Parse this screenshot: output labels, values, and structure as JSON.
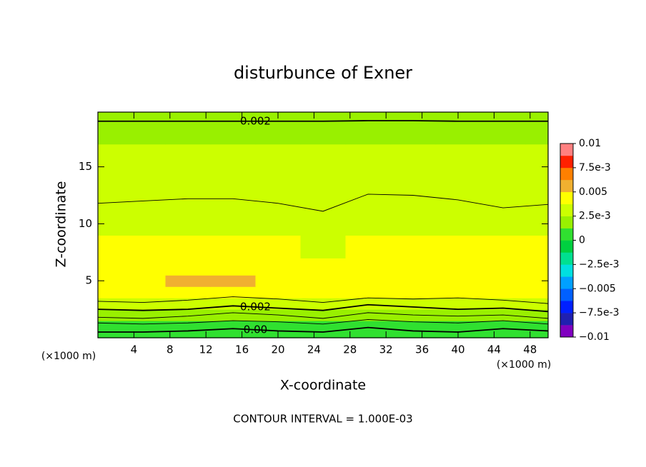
{
  "chart_data": {
    "type": "contour",
    "title": "disturbunce of Exner",
    "x_label": "X-coordinate",
    "y_label": "Z-coordinate",
    "x_unit": "(×1000 m)",
    "y_unit": "(×1000 m)",
    "footer": "CONTOUR INTERVAL = 1.000E-03",
    "xlim": [
      0,
      50
    ],
    "ylim": [
      0,
      19.8
    ],
    "xticks": [
      4,
      8,
      12,
      16,
      20,
      24,
      28,
      32,
      36,
      40,
      44,
      48
    ],
    "yticks": [
      5,
      10,
      15
    ],
    "x": [
      0,
      5,
      10,
      15,
      20,
      25,
      30,
      35,
      40,
      45,
      50
    ],
    "y": [
      0,
      1,
      2,
      3,
      4,
      5,
      6,
      8,
      10,
      12,
      14,
      16,
      18,
      19.8
    ],
    "z": [
      [
        0.0006,
        0.0006,
        0.0006,
        0.0006,
        0.0006,
        0.0006,
        0.0006,
        0.0006,
        0.0006,
        0.0006,
        0.0006
      ],
      [
        0.0012,
        0.0012,
        0.0012,
        0.0012,
        0.0012,
        0.0012,
        0.001,
        0.0012,
        0.0012,
        0.0011,
        0.0012
      ],
      [
        0.002,
        0.002,
        0.002,
        0.002,
        0.002,
        0.002,
        0.002,
        0.002,
        0.002,
        0.002,
        0.002
      ],
      [
        0.0031,
        0.0031,
        0.0031,
        0.0031,
        0.0031,
        0.0031,
        0.0031,
        0.0031,
        0.0031,
        0.0031,
        0.0031
      ],
      [
        0.004,
        0.004,
        0.004,
        0.004,
        0.004,
        0.004,
        0.004,
        0.004,
        0.004,
        0.004,
        0.004
      ],
      [
        0.0045,
        0.0045,
        0.0053,
        0.0052,
        0.0048,
        0.0045,
        0.0045,
        0.0045,
        0.0045,
        0.0045,
        0.0045
      ],
      [
        0.0044,
        0.0044,
        0.0044,
        0.0044,
        0.0044,
        0.0044,
        0.0044,
        0.0044,
        0.0044,
        0.0044,
        0.0044
      ],
      [
        0.0039,
        0.0039,
        0.0039,
        0.0039,
        0.0039,
        0.0037,
        0.0039,
        0.0039,
        0.0039,
        0.0039,
        0.0039
      ],
      [
        0.0033,
        0.0033,
        0.0033,
        0.0033,
        0.0033,
        0.0033,
        0.0033,
        0.0033,
        0.0033,
        0.0033,
        0.0033
      ],
      [
        0.003,
        0.003,
        0.003,
        0.003,
        0.003,
        0.003,
        0.003,
        0.003,
        0.003,
        0.003,
        0.003
      ],
      [
        0.0027,
        0.0027,
        0.0027,
        0.0027,
        0.0027,
        0.0027,
        0.0027,
        0.0027,
        0.0027,
        0.0027,
        0.0027
      ],
      [
        0.0026,
        0.0026,
        0.0026,
        0.0026,
        0.0026,
        0.0026,
        0.0026,
        0.0026,
        0.0026,
        0.0026,
        0.0026
      ],
      [
        0.0022,
        0.0022,
        0.0022,
        0.0022,
        0.0022,
        0.0022,
        0.0022,
        0.0022,
        0.0022,
        0.0022,
        0.0022
      ],
      [
        0.0019,
        0.0019,
        0.0019,
        0.0019,
        0.0019,
        0.0019,
        0.0019,
        0.0019,
        0.0019,
        0.0019,
        0.0019
      ]
    ],
    "contours": [
      {
        "y": [
          19,
          19,
          19,
          19,
          19,
          19,
          19.05,
          19.05,
          19,
          19,
          19
        ],
        "label": "0.002",
        "bold": true
      },
      {
        "y": [
          11.8,
          12.0,
          12.2,
          12.2,
          11.8,
          11.1,
          12.6,
          12.5,
          12.1,
          11.4,
          11.7
        ],
        "bold": false
      },
      {
        "y": [
          3.2,
          3.1,
          3.3,
          3.6,
          3.4,
          3.1,
          3.5,
          3.4,
          3.5,
          3.3,
          3.0
        ],
        "bold": false
      },
      {
        "y": [
          2.5,
          2.4,
          2.5,
          2.8,
          2.6,
          2.4,
          2.9,
          2.7,
          2.5,
          2.6,
          2.3
        ],
        "label": "0.002",
        "bold": true
      },
      {
        "y": [
          1.8,
          1.7,
          1.9,
          2.2,
          2.0,
          1.7,
          2.2,
          2.0,
          1.9,
          2.0,
          1.7
        ],
        "bold": false
      },
      {
        "y": [
          1.3,
          1.2,
          1.3,
          1.5,
          1.4,
          1.2,
          1.6,
          1.4,
          1.3,
          1.5,
          1.2
        ],
        "bold": false
      },
      {
        "y": [
          0.5,
          0.5,
          0.6,
          0.8,
          0.6,
          0.5,
          0.9,
          0.6,
          0.5,
          0.8,
          0.6
        ],
        "label": "0.00",
        "bold": true
      }
    ],
    "colorbar": {
      "levels": [
        -0.01,
        -0.00875,
        -0.0075,
        -0.00625,
        -0.005,
        -0.00375,
        -0.0025,
        -0.00125,
        0,
        0.00125,
        0.0025,
        0.00375,
        0.005,
        0.00625,
        0.0075,
        0.00875,
        0.01
      ],
      "colors": [
        "#8000c0",
        "#2020b0",
        "#0020ff",
        "#0060ff",
        "#00a0ff",
        "#00e0e0",
        "#00e090",
        "#00d040",
        "#30e030",
        "#99f000",
        "#ccff00",
        "#ffff00",
        "#f0b030",
        "#ff8000",
        "#ff2000",
        "#ff8080"
      ],
      "ticks": [
        0.01,
        {
          "value": 0.0075,
          "label": "7.5e-3"
        },
        0.005,
        {
          "value": 0.0025,
          "label": "2.5e-3"
        },
        0,
        {
          "value": -0.0025,
          "label": "−2.5e-3"
        },
        {
          "value": -0.005,
          "label": "−0.005"
        },
        {
          "value": -0.0075,
          "label": "−7.5e-3"
        },
        {
          "value": -0.01,
          "label": "−0.01"
        }
      ]
    }
  }
}
